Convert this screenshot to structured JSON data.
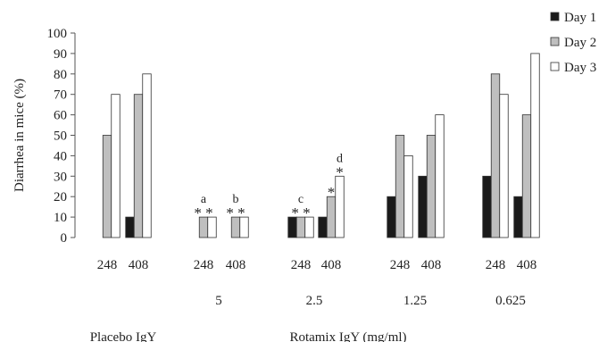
{
  "chart_data": {
    "type": "bar",
    "title": "",
    "ylabel": "Diarrhea in mice (%)",
    "ylim": [
      0,
      100
    ],
    "yticks": [
      0,
      10,
      20,
      30,
      40,
      50,
      60,
      70,
      80,
      90,
      100
    ],
    "grid": false,
    "legend_position": "top-right",
    "colors": {
      "Day 1": "#1a1a1a",
      "Day 2": "#bfbfbf",
      "Day 3": "#ffffff"
    },
    "categories": [
      "Placebo IgY 248",
      "Placebo IgY 408",
      "5 mg/ml 248",
      "5 mg/ml 408",
      "2.5 mg/ml 248",
      "2.5 mg/ml 408",
      "1.25 mg/ml 248",
      "1.25 mg/ml 408",
      "0.625 mg/ml 248",
      "0.625 mg/ml 408"
    ],
    "tick_labels": [
      "248",
      "408",
      "248",
      "408",
      "248",
      "408",
      "248",
      "408",
      "248",
      "408"
    ],
    "series": [
      {
        "name": "Day 1",
        "values": [
          0,
          10,
          0,
          0,
          10,
          10,
          20,
          30,
          30,
          20
        ]
      },
      {
        "name": "Day 2",
        "values": [
          50,
          70,
          10,
          10,
          10,
          20,
          50,
          50,
          80,
          60
        ]
      },
      {
        "name": "Day 3",
        "values": [
          70,
          80,
          10,
          10,
          10,
          30,
          40,
          60,
          70,
          90
        ]
      }
    ],
    "annotations": [
      {
        "category_index": 2,
        "star": "* *",
        "letter": "a"
      },
      {
        "category_index": 3,
        "star": "* *",
        "letter": "b"
      },
      {
        "category_index": 4,
        "star": "* *",
        "letter": "c"
      },
      {
        "category_index": 5,
        "star": "*",
        "letter": "",
        "series_index": 1
      },
      {
        "category_index": 5,
        "star": "*",
        "letter": "d",
        "series_index": 2
      }
    ],
    "concentration_labels": [
      "5",
      "2.5",
      "1.25",
      "0.625"
    ],
    "group_labels": [
      "Placebo IgY",
      "Rotamix IgY (mg/ml)"
    ]
  }
}
